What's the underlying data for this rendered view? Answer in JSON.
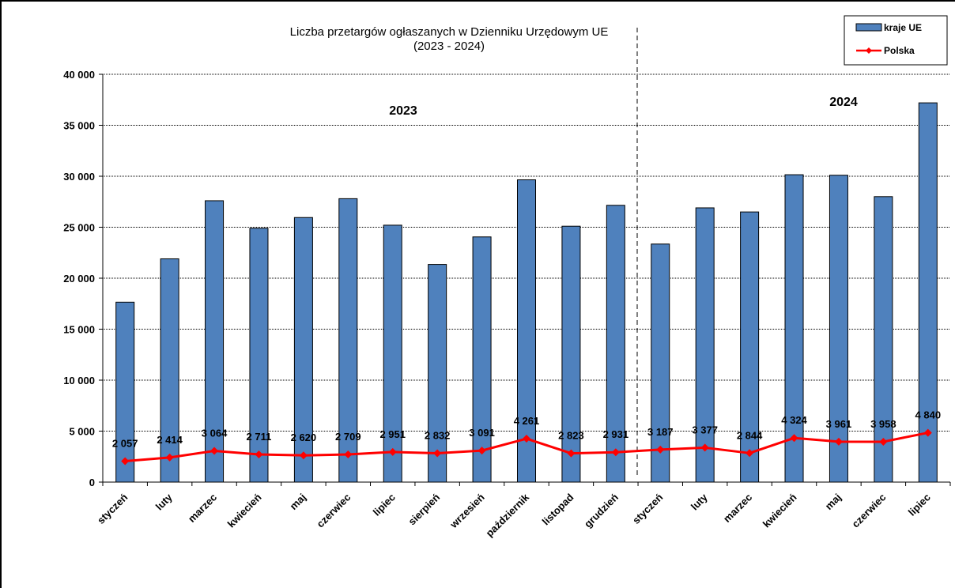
{
  "chart_data": {
    "type": "bar",
    "title": "Liczba przetargów ogłaszanych w Dzienniku Urzędowym UE",
    "subtitle": "(2023 - 2024)",
    "categories": [
      "styczeń",
      "luty",
      "marzec",
      "kwiecień",
      "maj",
      "czerwiec",
      "lipiec",
      "sierpień",
      "wrzesień",
      "październik",
      "listopad",
      "grudzień",
      "styczeń",
      "luty",
      "marzec",
      "kwiecień",
      "maj",
      "czerwiec",
      "lipiec"
    ],
    "year_labels": [
      "2023",
      "2024"
    ],
    "series": [
      {
        "name": "kraje UE",
        "type": "bar",
        "color": "#4f81bd",
        "values": [
          17650,
          21900,
          27600,
          24900,
          25950,
          27800,
          25200,
          21350,
          24050,
          29650,
          25100,
          27150,
          23350,
          26900,
          26500,
          30150,
          30100,
          28000,
          37200
        ]
      },
      {
        "name": "Polska",
        "type": "line",
        "color": "#ff0000",
        "values": [
          2057,
          2414,
          3064,
          2711,
          2620,
          2709,
          2951,
          2832,
          3091,
          4261,
          2823,
          2931,
          3187,
          3377,
          2844,
          4324,
          3961,
          3958,
          4840
        ],
        "labels": [
          "2 057",
          "2 414",
          "3 064",
          "2 711",
          "2 620",
          "2 709",
          "2 951",
          "2 832",
          "3 091",
          "4 261",
          "2 823",
          "2 931",
          "3 187",
          "3 377",
          "2 844",
          "4 324",
          "3 961",
          "3 958",
          "4 840"
        ]
      }
    ],
    "yticks": [
      {
        "value": 0,
        "label": "0"
      },
      {
        "value": 5000,
        "label": "5 000"
      },
      {
        "value": 10000,
        "label": "10 000"
      },
      {
        "value": 15000,
        "label": "15 000"
      },
      {
        "value": 20000,
        "label": "20 000"
      },
      {
        "value": 25000,
        "label": "25 000"
      },
      {
        "value": 30000,
        "label": "30 000"
      },
      {
        "value": 35000,
        "label": "35 000"
      },
      {
        "value": 40000,
        "label": "40 000"
      }
    ],
    "ylim": [
      0,
      40000
    ],
    "grid": true,
    "legend_position": "top-right"
  }
}
